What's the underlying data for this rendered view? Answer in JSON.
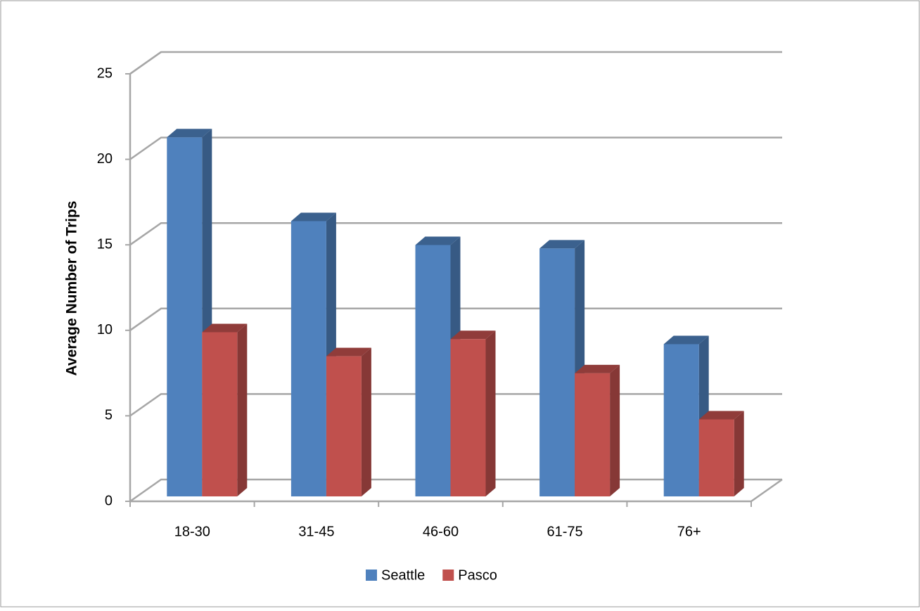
{
  "chart_data": {
    "type": "bar3d",
    "y_label": "Average Number of Trips",
    "categories": [
      "18-30",
      "31-45",
      "46-60",
      "61-75",
      "76+"
    ],
    "series": [
      {
        "name": "Seattle",
        "color": "#4f81bd",
        "values": [
          21.0,
          16.1,
          14.7,
          14.5,
          8.9
        ]
      },
      {
        "name": "Pasco",
        "color": "#c0504d",
        "values": [
          9.6,
          8.2,
          9.2,
          7.2,
          4.5
        ]
      }
    ],
    "ylim": [
      0,
      25
    ],
    "yticks": [
      0,
      5,
      10,
      15,
      20,
      25
    ],
    "grid": true,
    "legend": "bottom"
  }
}
